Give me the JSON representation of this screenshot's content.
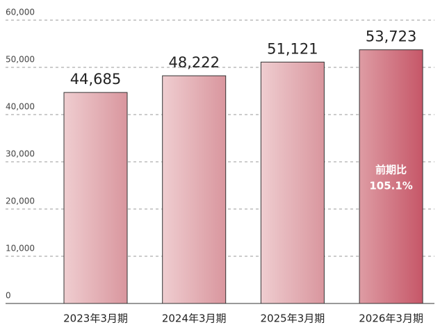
{
  "chart_data": {
    "type": "bar",
    "categories": [
      "2023年3月期",
      "2024年3月期",
      "2025年3月期",
      "2026年3月期"
    ],
    "values": [
      44685,
      48222,
      51121,
      53723
    ],
    "value_labels": [
      "44,685",
      "48,222",
      "51,121",
      "53,723"
    ],
    "colors": [
      [
        "#efcdd0",
        "#d9969e"
      ],
      [
        "#efcdd0",
        "#d9969e"
      ],
      [
        "#efcdd0",
        "#d9969e"
      ],
      [
        "#de9ca4",
        "#c65768"
      ]
    ],
    "ylim": [
      0,
      60000
    ],
    "yticks": [
      0,
      {
        "value": 10000,
        "label": "10,000"
      },
      {
        "value": 20000,
        "label": "20,000"
      },
      {
        "value": 30000,
        "label": "30,000"
      },
      {
        "value": 40000,
        "label": "40,000"
      },
      {
        "value": 50000,
        "label": "50,000"
      },
      {
        "value": 60000,
        "label": "60,000"
      }
    ],
    "grid": true,
    "annotation": {
      "category": 3,
      "lines": [
        "前期比",
        "105.1%"
      ]
    }
  }
}
